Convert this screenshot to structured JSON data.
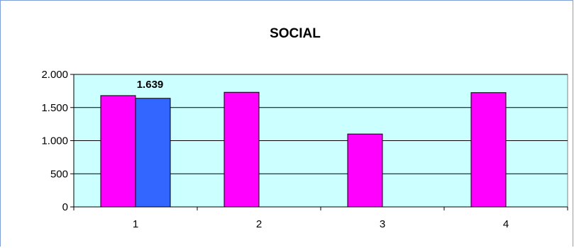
{
  "chart_data": {
    "type": "bar",
    "title": "SOCIAL",
    "xlabel": "",
    "ylabel": "",
    "categories": [
      "1",
      "2",
      "3",
      "4"
    ],
    "ylim": [
      0,
      2000
    ],
    "yticks": [
      0,
      500,
      1000,
      1500,
      2000
    ],
    "ytick_labels": [
      "0",
      "500",
      "1.000",
      "1.500",
      "2.000"
    ],
    "grid": true,
    "legend": "none",
    "series": [
      {
        "values": [
          1680,
          1730,
          1100,
          1725
        ],
        "color": "#ff00ff"
      },
      {
        "values": [
          1639,
          null,
          null,
          null
        ],
        "color": "#3366ff"
      }
    ],
    "data_labels": [
      {
        "series": 1,
        "category": 0,
        "text": "1.639"
      }
    ],
    "plot_background": "#ccffff"
  }
}
